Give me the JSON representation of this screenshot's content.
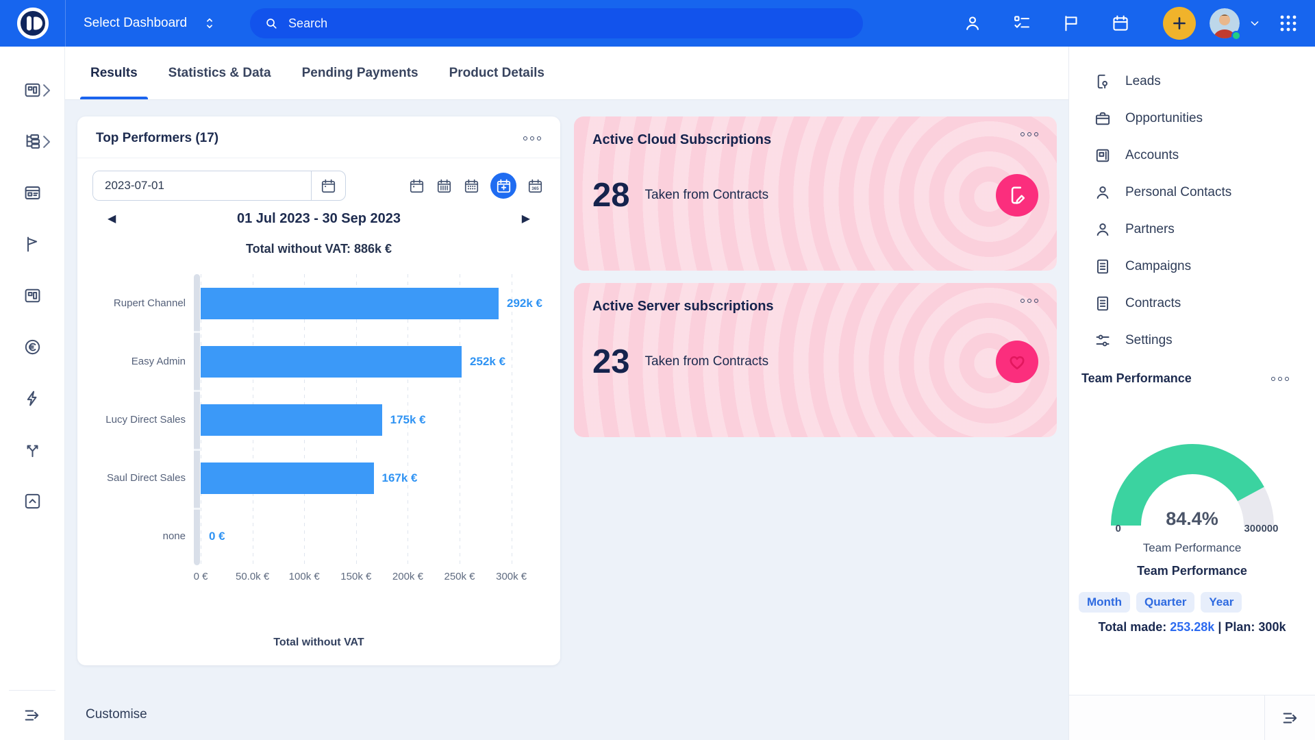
{
  "header": {
    "select_dashboard": "Select Dashboard",
    "search_placeholder": "Search",
    "icons": [
      "person-icon",
      "tasks-icon",
      "flag-icon",
      "calendar-icon",
      "plus-button",
      "avatar",
      "chevron-down-icon",
      "apps-grid-icon"
    ],
    "colors": {
      "header_blue": "#1765ee",
      "search_blue": "#1253ec",
      "plus_yellow": "#f0b32b",
      "status_green": "#23ce83"
    }
  },
  "left_sidebar": {
    "icons": [
      "dashboard-icon",
      "pipeline-tree-icon",
      "browser-window-icon",
      "flag-icon",
      "cards-icon",
      "euro-icon",
      "lightning-icon",
      "split-arrows-icon",
      "box-arrow-up-icon"
    ],
    "collapse_icon": "expand-sidebar-icon"
  },
  "tabs": [
    {
      "label": "Results",
      "active": true
    },
    {
      "label": "Statistics & Data",
      "active": false
    },
    {
      "label": "Pending Payments",
      "active": false
    },
    {
      "label": "Product Details",
      "active": false
    }
  ],
  "top_performers": {
    "title": "Top Performers (17)",
    "date_value": "2023-07-01",
    "nav_prev": "◀",
    "nav_next": "▶",
    "date_range": "01 Jul 2023 - 30 Sep 2023",
    "period_icons": [
      "day-calendar-icon",
      "week-calendar-icon",
      "month-calendar-icon",
      "quarter-calendar-icon-active",
      "year-365-calendar-icon"
    ],
    "chart_data": {
      "type": "bar",
      "orientation": "horizontal",
      "title": "Total without VAT: 886k €",
      "bottom_label": "Total without VAT",
      "categories": [
        "Rupert Channel",
        "Easy Admin",
        "Lucy Direct Sales",
        "Saul Direct Sales",
        "none"
      ],
      "values": [
        292000,
        252000,
        175000,
        167000,
        0
      ],
      "value_labels": [
        "292k €",
        "252k €",
        "175k €",
        "167k €",
        "0 €"
      ],
      "x_ticks": [
        "0 €",
        "50.0k €",
        "100k €",
        "150k €",
        "200k €",
        "250k €",
        "300k €"
      ],
      "x_tick_values": [
        0,
        50000,
        100000,
        150000,
        200000,
        250000,
        300000
      ],
      "axis_max": 330000,
      "bar_color": "#3b99f8",
      "grid": true
    }
  },
  "subscriptions": [
    {
      "title": "Active Cloud Subscriptions",
      "value": "28",
      "subtitle": "Taken from Contracts",
      "icon": "contract-edit-icon",
      "accent": "#fb2e7d",
      "background": "#fbd0dc"
    },
    {
      "title": "Active Server subscriptions",
      "value": "23",
      "subtitle": "Taken from Contracts",
      "icon": "heart-icon",
      "accent": "#fb2e7d",
      "background": "#fbd0dc"
    }
  ],
  "right_panel": {
    "menu": [
      {
        "label": "Leads",
        "icon": "lead-document-icon"
      },
      {
        "label": "Opportunities",
        "icon": "briefcase-icon"
      },
      {
        "label": "Accounts",
        "icon": "accounts-window-icon"
      },
      {
        "label": "Personal Contacts",
        "icon": "person-icon"
      },
      {
        "label": "Partners",
        "icon": "person-icon"
      },
      {
        "label": "Campaigns",
        "icon": "document-lines-icon"
      },
      {
        "label": "Contracts",
        "icon": "document-lines-icon"
      },
      {
        "label": "Settings",
        "icon": "sliders-icon"
      }
    ],
    "section_title": "Team Performance",
    "gauge": {
      "type": "gauge",
      "percent": 84.4,
      "percent_label": "84.4%",
      "min_label": "0",
      "max_label": "300000",
      "min_value": 0,
      "max_value": 300000,
      "value": 253280,
      "gauge_label": "Team Performance",
      "widget_title": "Team Performance",
      "color": "#3bd3a0",
      "track_color": "#e9e9ef"
    },
    "periods": [
      {
        "label": "Month"
      },
      {
        "label": "Quarter"
      },
      {
        "label": "Year"
      }
    ],
    "totals": {
      "made_label": "Total made:",
      "made_value": "253.28k",
      "divider": "|",
      "plan_label": "Plan:",
      "plan_value": "300k"
    }
  },
  "footer": {
    "customise": "Customise"
  }
}
